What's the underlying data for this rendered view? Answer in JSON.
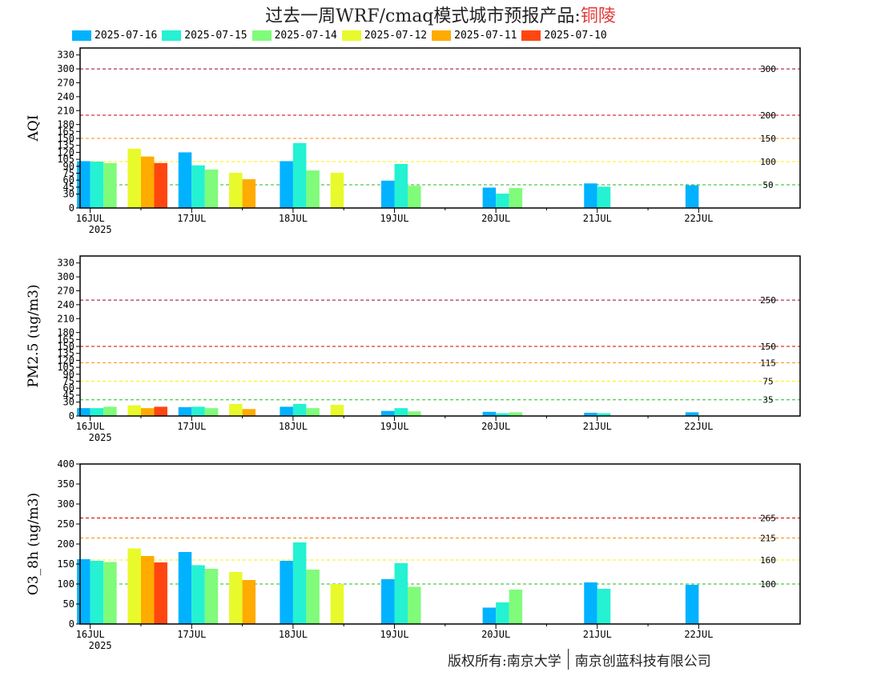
{
  "title": {
    "text": "过去一周WRF/cmaq模式城市预报产品:",
    "city": "铜陵"
  },
  "series_names": [
    "2025-07-16",
    "2025-07-15",
    "2025-07-14",
    "2025-07-12",
    "2025-07-11",
    "2025-07-10"
  ],
  "series_colors": [
    "#00b2ff",
    "#24f2d2",
    "#80fb7a",
    "#e8fa2b",
    "#ffab00",
    "#ff4610"
  ],
  "date_labels": [
    "16JUL",
    "17JUL",
    "18JUL",
    "19JUL",
    "20JUL",
    "21JUL",
    "22JUL"
  ],
  "year_label": "2025",
  "footer": {
    "left": "版权所有:南京大学",
    "right": "南京创蓝科技有限公司"
  },
  "chart_data": [
    {
      "type": "bar",
      "ylabel": "AQI",
      "ylim": [
        0,
        345
      ],
      "yticks": [
        0,
        30,
        45,
        60,
        75,
        90,
        105,
        120,
        135,
        150,
        165,
        180,
        210,
        240,
        270,
        300,
        330
      ],
      "ytick_labels": [
        "0",
        "30",
        "45",
        "60",
        "75",
        "90",
        "105",
        "120",
        "135",
        "150",
        "165",
        "180",
        "210",
        "240",
        "270",
        "300",
        "330"
      ],
      "x_range": [
        15.9,
        23.0
      ],
      "thresholds": [
        {
          "value": 300,
          "label": "300",
          "color": "#9a0034"
        },
        {
          "value": 200,
          "label": "200",
          "color": "#d00000"
        },
        {
          "value": 150,
          "label": "150",
          "color": "#ff8c00"
        },
        {
          "value": 100,
          "label": "100",
          "color": "#ffee00"
        },
        {
          "value": 50,
          "label": "50",
          "color": "#22bb22"
        }
      ],
      "bars": [
        {
          "x": 16.0,
          "s": 0,
          "v": 101
        },
        {
          "x": 16.0,
          "s": 1,
          "v": 100
        },
        {
          "x": 16.0,
          "s": 2,
          "v": 97
        },
        {
          "x": 16.5,
          "s": 3,
          "v": 128
        },
        {
          "x": 16.5,
          "s": 4,
          "v": 111
        },
        {
          "x": 16.5,
          "s": 5,
          "v": 97
        },
        {
          "x": 17.0,
          "s": 0,
          "v": 120
        },
        {
          "x": 17.0,
          "s": 1,
          "v": 92
        },
        {
          "x": 17.0,
          "s": 2,
          "v": 83
        },
        {
          "x": 17.5,
          "s": 3,
          "v": 76
        },
        {
          "x": 17.5,
          "s": 4,
          "v": 62
        },
        {
          "x": 18.0,
          "s": 0,
          "v": 101
        },
        {
          "x": 18.0,
          "s": 1,
          "v": 140
        },
        {
          "x": 18.0,
          "s": 2,
          "v": 81
        },
        {
          "x": 18.5,
          "s": 3,
          "v": 76
        },
        {
          "x": 19.0,
          "s": 0,
          "v": 59
        },
        {
          "x": 19.0,
          "s": 1,
          "v": 95
        },
        {
          "x": 19.0,
          "s": 2,
          "v": 48
        },
        {
          "x": 20.0,
          "s": 0,
          "v": 44
        },
        {
          "x": 20.0,
          "s": 1,
          "v": 31
        },
        {
          "x": 20.0,
          "s": 2,
          "v": 43
        },
        {
          "x": 21.0,
          "s": 0,
          "v": 53
        },
        {
          "x": 21.0,
          "s": 1,
          "v": 46
        },
        {
          "x": 22.0,
          "s": 0,
          "v": 49
        }
      ]
    },
    {
      "type": "bar",
      "ylabel": "PM2.5 (ug/m3)",
      "ylim": [
        0,
        345
      ],
      "yticks": [
        0,
        30,
        45,
        60,
        75,
        90,
        105,
        120,
        135,
        150,
        165,
        180,
        210,
        240,
        270,
        300,
        330
      ],
      "ytick_labels": [
        "0",
        "30",
        "45",
        "60",
        "75",
        "90",
        "105",
        "120",
        "135",
        "150",
        "165",
        "180",
        "210",
        "240",
        "270",
        "300",
        "330"
      ],
      "x_range": [
        15.9,
        23.0
      ],
      "thresholds": [
        {
          "value": 250,
          "label": "250",
          "color": "#9a0034"
        },
        {
          "value": 150,
          "label": "150",
          "color": "#d00000"
        },
        {
          "value": 115,
          "label": "115",
          "color": "#ff8c00"
        },
        {
          "value": 75,
          "label": "75",
          "color": "#ffee00"
        },
        {
          "value": 35,
          "label": "35",
          "color": "#22bb22"
        }
      ],
      "bars": [
        {
          "x": 16.0,
          "s": 0,
          "v": 17
        },
        {
          "x": 16.0,
          "s": 1,
          "v": 17
        },
        {
          "x": 16.0,
          "s": 2,
          "v": 20
        },
        {
          "x": 16.5,
          "s": 3,
          "v": 23
        },
        {
          "x": 16.5,
          "s": 4,
          "v": 17
        },
        {
          "x": 16.5,
          "s": 5,
          "v": 20
        },
        {
          "x": 17.0,
          "s": 0,
          "v": 19
        },
        {
          "x": 17.0,
          "s": 1,
          "v": 20
        },
        {
          "x": 17.0,
          "s": 2,
          "v": 17
        },
        {
          "x": 17.5,
          "s": 3,
          "v": 26
        },
        {
          "x": 17.5,
          "s": 4,
          "v": 15
        },
        {
          "x": 18.0,
          "s": 0,
          "v": 20
        },
        {
          "x": 18.0,
          "s": 1,
          "v": 26
        },
        {
          "x": 18.0,
          "s": 2,
          "v": 17
        },
        {
          "x": 18.5,
          "s": 3,
          "v": 24
        },
        {
          "x": 19.0,
          "s": 0,
          "v": 11
        },
        {
          "x": 19.0,
          "s": 1,
          "v": 17
        },
        {
          "x": 19.0,
          "s": 2,
          "v": 10
        },
        {
          "x": 20.0,
          "s": 0,
          "v": 9
        },
        {
          "x": 20.0,
          "s": 1,
          "v": 6
        },
        {
          "x": 20.0,
          "s": 2,
          "v": 8
        },
        {
          "x": 21.0,
          "s": 0,
          "v": 7
        },
        {
          "x": 21.0,
          "s": 1,
          "v": 6
        },
        {
          "x": 22.0,
          "s": 0,
          "v": 8
        }
      ]
    },
    {
      "type": "bar",
      "ylabel": "O3_8h (ug/m3)",
      "ylim": [
        0,
        400
      ],
      "yticks": [
        0,
        50,
        100,
        150,
        200,
        250,
        300,
        350,
        400
      ],
      "ytick_labels": [
        "0",
        "50",
        "100",
        "150",
        "200",
        "250",
        "300",
        "350",
        "400"
      ],
      "x_range": [
        15.9,
        23.0
      ],
      "thresholds": [
        {
          "value": 265,
          "label": "265",
          "color": "#d00000"
        },
        {
          "value": 215,
          "label": "215",
          "color": "#ff8c00"
        },
        {
          "value": 160,
          "label": "160",
          "color": "#ffee00"
        },
        {
          "value": 100,
          "label": "100",
          "color": "#22bb22"
        }
      ],
      "bars": [
        {
          "x": 16.0,
          "s": 0,
          "v": 162
        },
        {
          "x": 16.0,
          "s": 1,
          "v": 158
        },
        {
          "x": 16.0,
          "s": 2,
          "v": 155
        },
        {
          "x": 16.5,
          "s": 3,
          "v": 189
        },
        {
          "x": 16.5,
          "s": 4,
          "v": 170
        },
        {
          "x": 16.5,
          "s": 5,
          "v": 154
        },
        {
          "x": 17.0,
          "s": 0,
          "v": 180
        },
        {
          "x": 17.0,
          "s": 1,
          "v": 147
        },
        {
          "x": 17.0,
          "s": 2,
          "v": 138
        },
        {
          "x": 17.5,
          "s": 3,
          "v": 130
        },
        {
          "x": 17.5,
          "s": 4,
          "v": 110
        },
        {
          "x": 18.0,
          "s": 0,
          "v": 158
        },
        {
          "x": 18.0,
          "s": 1,
          "v": 204
        },
        {
          "x": 18.0,
          "s": 2,
          "v": 136
        },
        {
          "x": 18.5,
          "s": 3,
          "v": 100
        },
        {
          "x": 19.0,
          "s": 0,
          "v": 112
        },
        {
          "x": 19.0,
          "s": 1,
          "v": 152
        },
        {
          "x": 19.0,
          "s": 2,
          "v": 93
        },
        {
          "x": 20.0,
          "s": 0,
          "v": 41
        },
        {
          "x": 20.0,
          "s": 1,
          "v": 54
        },
        {
          "x": 20.0,
          "s": 2,
          "v": 86
        },
        {
          "x": 21.0,
          "s": 0,
          "v": 104
        },
        {
          "x": 21.0,
          "s": 1,
          "v": 88
        },
        {
          "x": 22.0,
          "s": 0,
          "v": 98
        }
      ]
    }
  ]
}
